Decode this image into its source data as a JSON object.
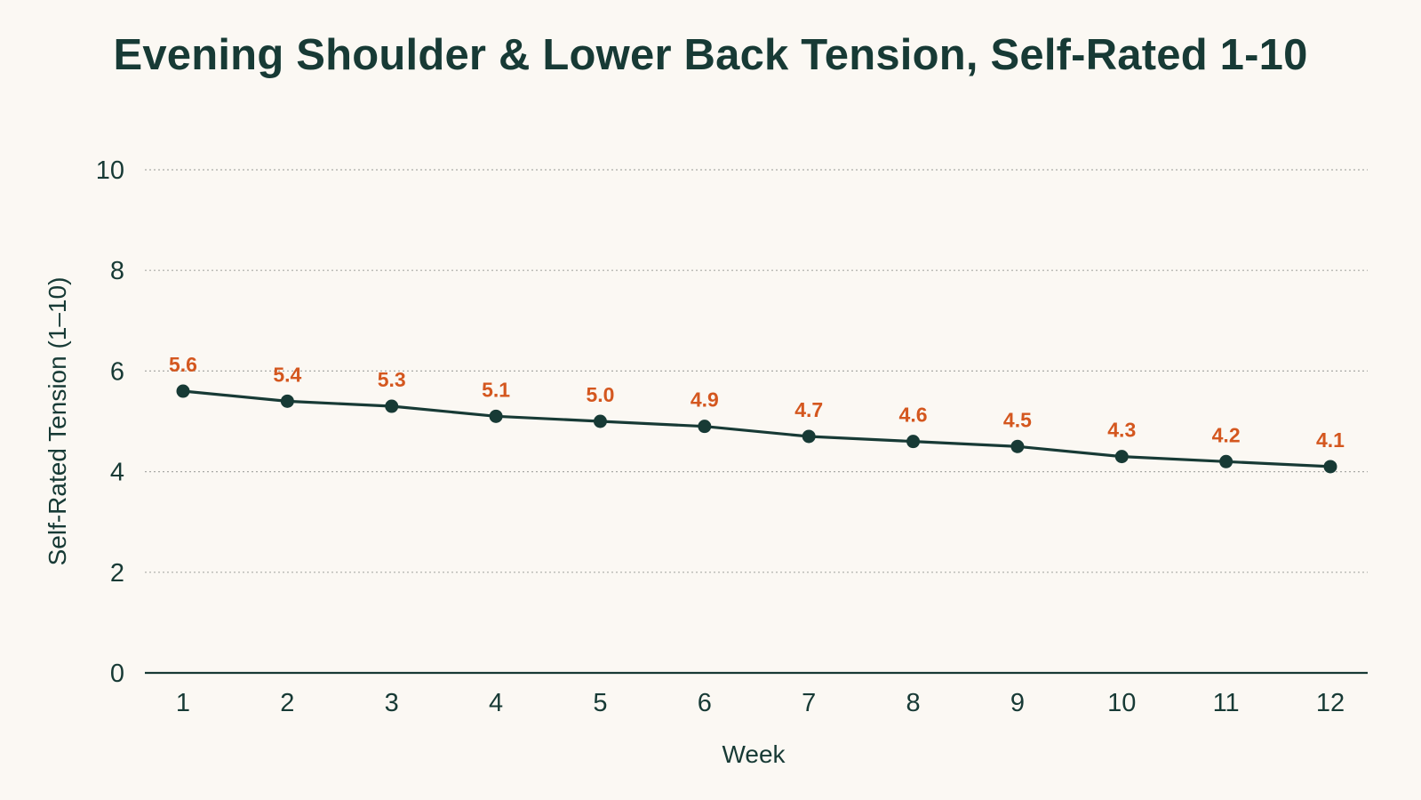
{
  "chart_data": {
    "type": "line",
    "title": "Evening Shoulder & Lower Back Tension, Self-Rated 1-10",
    "xlabel": "Week",
    "ylabel": "Self-Rated Tension (1–10)",
    "categories": [
      "1",
      "2",
      "3",
      "4",
      "5",
      "6",
      "7",
      "8",
      "9",
      "10",
      "11",
      "12"
    ],
    "series": [
      {
        "values": [
          5.6,
          5.4,
          5.3,
          5.1,
          5.0,
          4.9,
          4.7,
          4.6,
          4.5,
          4.3,
          4.2,
          4.1
        ],
        "labels": [
          "5.6",
          "5.4",
          "5.3",
          "5.1",
          "5.0",
          "4.9",
          "4.7",
          "4.6",
          "4.5",
          "4.3",
          "4.2",
          "4.1"
        ],
        "color": "#173a35",
        "label_color": "#d4571f"
      }
    ],
    "ylim": [
      0,
      10
    ],
    "yticks": [
      "0",
      "2",
      "4",
      "6",
      "8",
      "10"
    ],
    "grid": true,
    "legend": "none"
  },
  "colors": {
    "background": "#fbf8f3",
    "text": "#173a35",
    "line": "#173a35",
    "data_label": "#d4571f",
    "grid": "#a9aaa6"
  }
}
